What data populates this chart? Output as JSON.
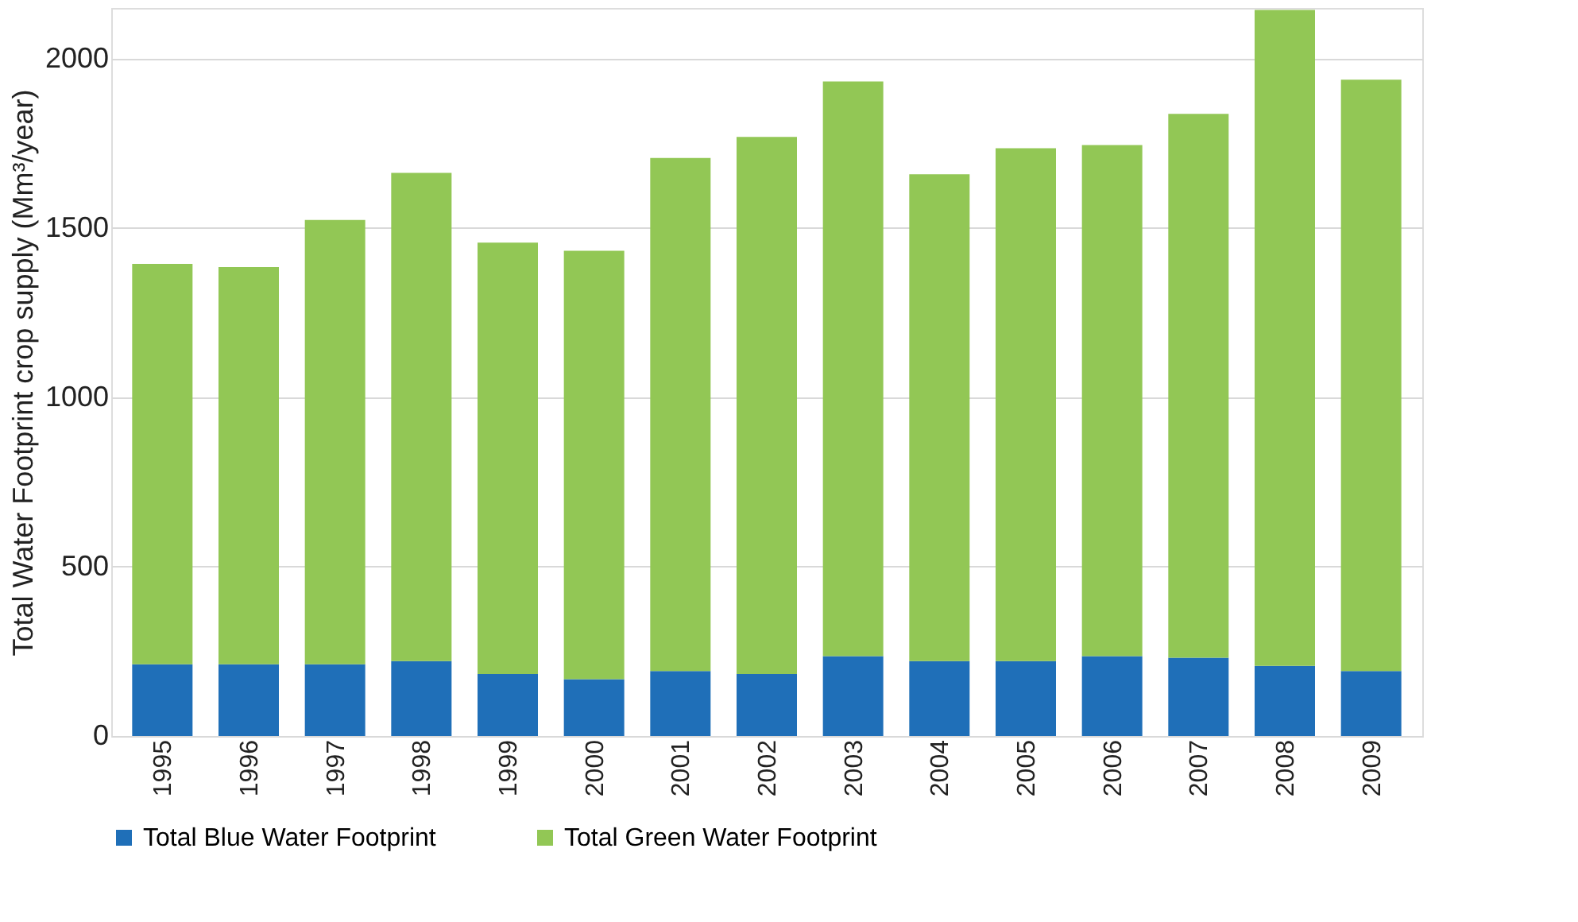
{
  "chart_data": {
    "type": "bar",
    "stacked": true,
    "ylabel": "Total Water Footprint crop supply (Mm³/year)",
    "categories": [
      "1995",
      "1996",
      "1997",
      "1998",
      "1999",
      "2000",
      "2001",
      "2002",
      "2003",
      "2004",
      "2005",
      "2006",
      "2007",
      "2008",
      "2009"
    ],
    "series": [
      {
        "name": "Total Blue Water Footprint",
        "color": "#1f6fb8",
        "values": [
          212,
          212,
          212,
          221,
          183,
          168,
          192,
          183,
          236,
          221,
          221,
          236,
          231,
          207,
          192
        ]
      },
      {
        "name": "Total Green Water Footprint",
        "color": "#92c755",
        "values": [
          1182,
          1173,
          1312,
          1442,
          1274,
          1265,
          1515,
          1586,
          1697,
          1438,
          1515,
          1509,
          1606,
          1937,
          1746
        ]
      }
    ],
    "ylim": [
      0,
      2150
    ],
    "yticks": [
      0,
      500,
      1000,
      1500,
      2000
    ],
    "grid": "y",
    "legend": "bottom"
  }
}
